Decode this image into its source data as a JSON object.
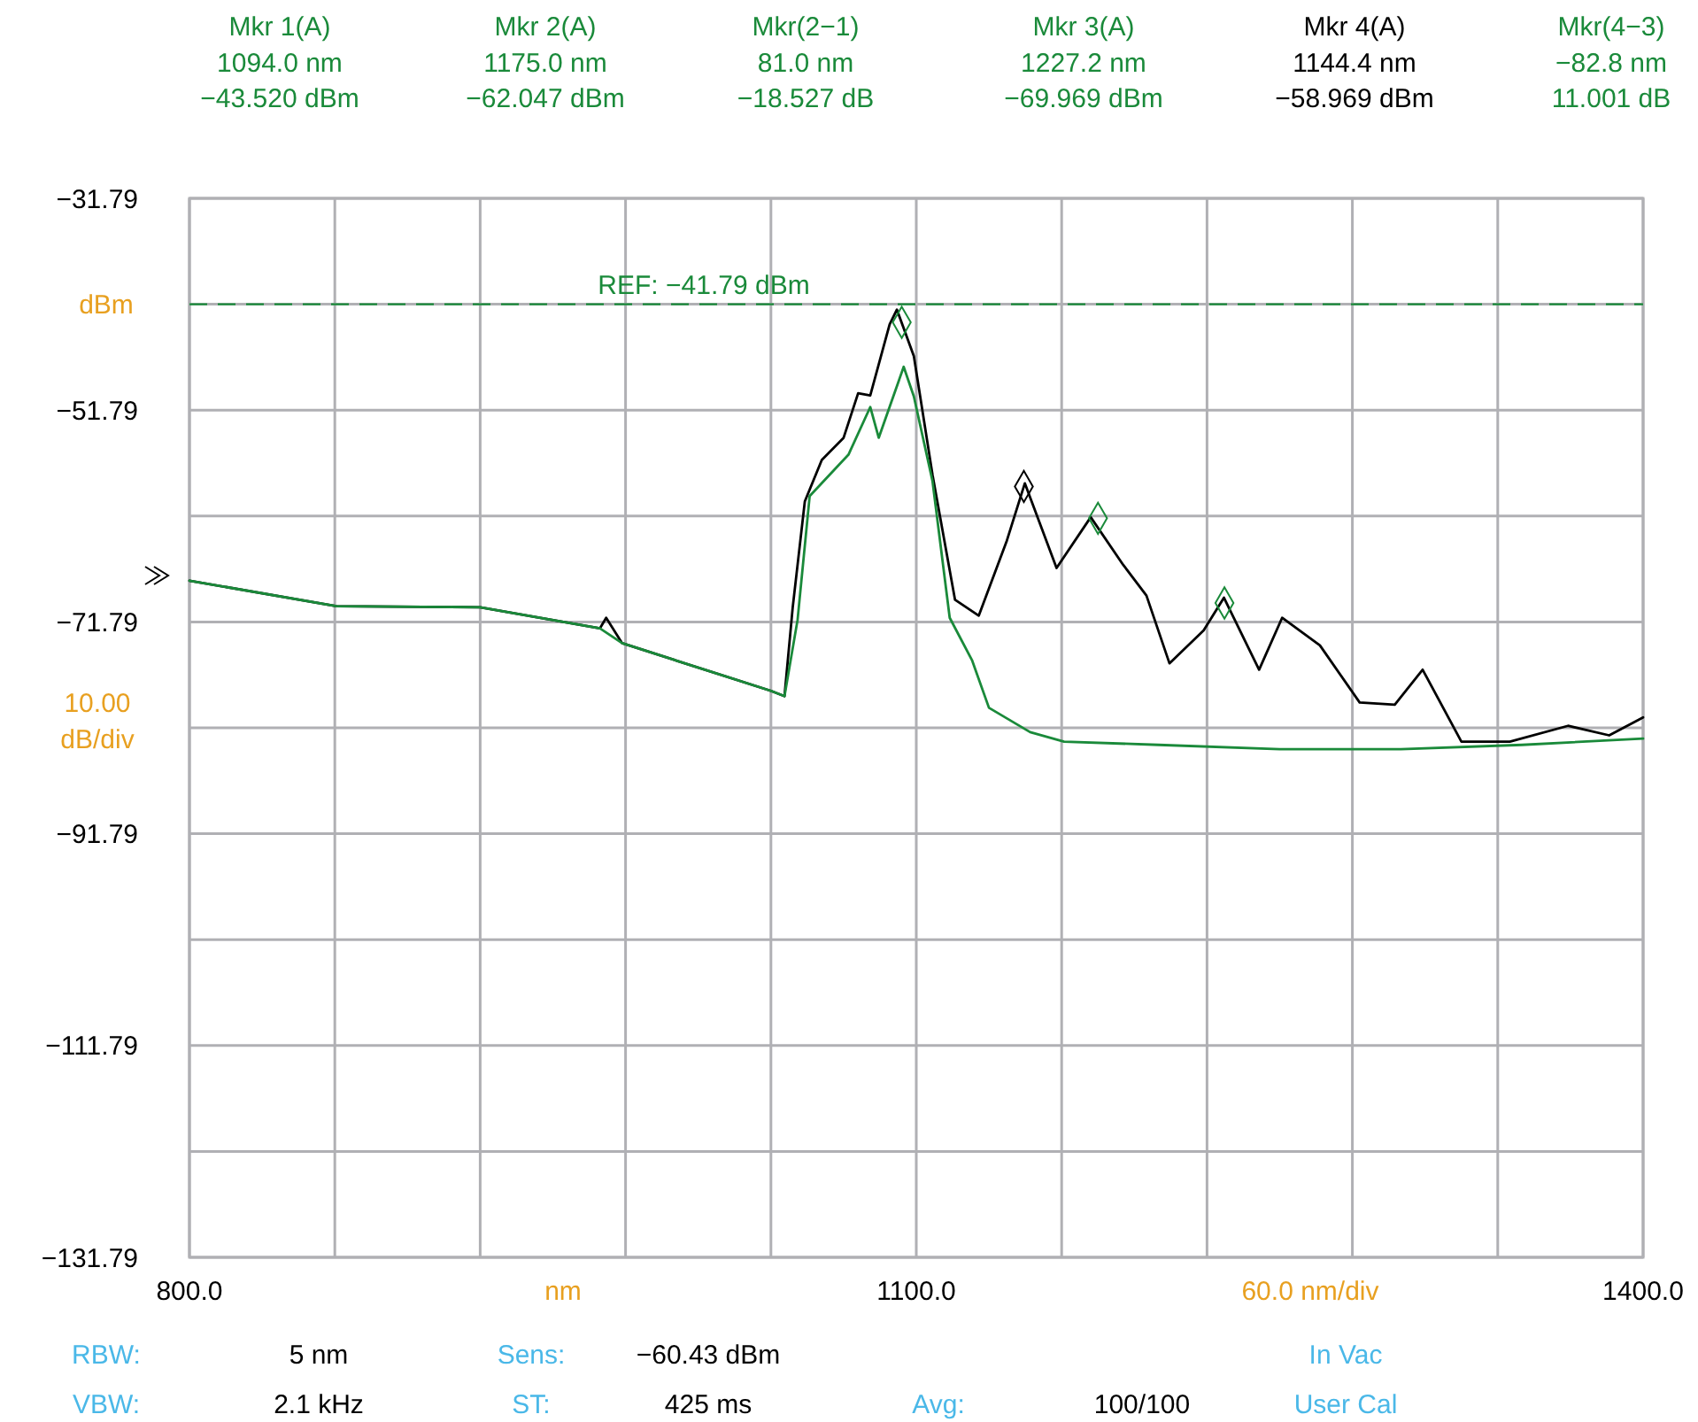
{
  "chart_data": {
    "type": "line",
    "ylabel": "dBm",
    "xlabel": "nm",
    "annotations": [
      "Mkr 1(A)\n1094.0 nm\n−43.520 dBm",
      "Mkr 2(A)\n1175.0 nm\n−62.047 dBm",
      "Mkr(2−1)\n81.0 nm\n−18.527 dB",
      "Mkr 3(A)\n1227.2 nm\n−69.969 dBm",
      "Mkr 4(A)\n1144.4 nm\n−58.969 dBm",
      "Mkr(4−3)\n−82.8 nm\n11.001 dB",
      "10.00\ndB/div",
      "60.0 nm/div",
      "RBW:",
      "5 nm",
      "Sens:",
      "−60.43 dBm",
      "In Vac",
      "VBW:",
      "2.1 kHz",
      "ST:",
      "425 ms",
      "Avg:",
      "100/100",
      "User Cal"
    ],
    "xlim": [
      800,
      1400
    ],
    "xticks": [
      {
        "value": 800,
        "label": "800.0"
      },
      {
        "value": 860,
        "label": null
      },
      {
        "value": 920,
        "label": null
      },
      {
        "value": 980,
        "label": null
      },
      {
        "value": 1040,
        "label": null
      },
      {
        "value": 1100,
        "label": "1100.0"
      },
      {
        "value": 1160,
        "label": null
      },
      {
        "value": 1220,
        "label": null
      },
      {
        "value": 1280,
        "label": null
      },
      {
        "value": 1340,
        "label": null
      },
      {
        "value": 1400,
        "label": "1400.0"
      }
    ],
    "ylim": [
      -131.79,
      -31.79
    ],
    "yticks": [
      -31.79,
      {
        "value": -41.79,
        "label": null
      },
      -51.79,
      {
        "value": -61.79,
        "label": null
      },
      -71.79,
      {
        "value": -81.79,
        "label": null
      },
      -91.79,
      {
        "value": -101.79,
        "label": null
      },
      -111.79,
      {
        "value": -121.79,
        "label": null
      },
      -131.79
    ],
    "grid": true,
    "marker": "none",
    "line_style": "solid",
    "ref_lines": [
      {
        "axis": "y",
        "value": -41.79,
        "label": "REF: −41.79 dBm",
        "color": "#1a8a3a",
        "line_style": "dashed"
      }
    ],
    "series": [
      {
        "color": "#000000",
        "x": [
          800,
          860.7,
          920,
          969.4,
          972,
          978.6,
          1040,
          1045.6,
          1049,
          1054,
          1061,
          1070,
          1076,
          1081,
          1089,
          1092,
          1099,
          1106.7,
          1116,
          1125.8,
          1137.4,
          1144.8,
          1157.9,
          1172,
          1185.4,
          1195,
          1204.5,
          1218.6,
          1227,
          1241.5,
          1251,
          1266.6,
          1283,
          1297.5,
          1309,
          1325,
          1345,
          1369,
          1386,
          1400
        ],
        "values": [
          -67.9,
          -70.3,
          -70.4,
          -72.4,
          -71.4,
          -73.8,
          -78.3,
          -78.8,
          -70.4,
          -60.4,
          -56.5,
          -54.4,
          -50.2,
          -50.4,
          -43.7,
          -42.3,
          -46.7,
          -57.9,
          -69.7,
          -71.2,
          -64.1,
          -58.7,
          -66.7,
          -61.9,
          -66.4,
          -69.3,
          -75.7,
          -72.6,
          -69.5,
          -76.3,
          -71.4,
          -74.0,
          -79.4,
          -79.6,
          -76.3,
          -83.1,
          -83.1,
          -81.6,
          -82.5,
          -80.8
        ]
      },
      {
        "color": "#1a8a3a",
        "x": [
          800,
          860.7,
          920,
          969.4,
          978.6,
          1040,
          1045.6,
          1051,
          1056,
          1072,
          1081,
          1084.5,
          1094.8,
          1099,
          1106.7,
          1113.8,
          1123,
          1130,
          1147,
          1161,
          1200,
          1250,
          1300,
          1350,
          1400
        ],
        "values": [
          -67.9,
          -70.3,
          -70.4,
          -72.4,
          -73.8,
          -78.3,
          -78.8,
          -71.6,
          -59.9,
          -56.0,
          -51.5,
          -54.4,
          -47.7,
          -50.5,
          -58.5,
          -71.4,
          -75.4,
          -79.9,
          -82.2,
          -83.1,
          -83.4,
          -83.8,
          -83.8,
          -83.4,
          -82.8
        ]
      },
      {
        "type": "scatter",
        "marker": "diamond",
        "x": [
          1094,
          1175,
          1227.2,
          1144.4
        ],
        "values": [
          -43.5,
          -62.0,
          -70.0,
          -59.0
        ],
        "colors": [
          "#1a8a3a",
          "#1a8a3a",
          "#1a8a3a",
          "#000000"
        ]
      }
    ]
  }
}
